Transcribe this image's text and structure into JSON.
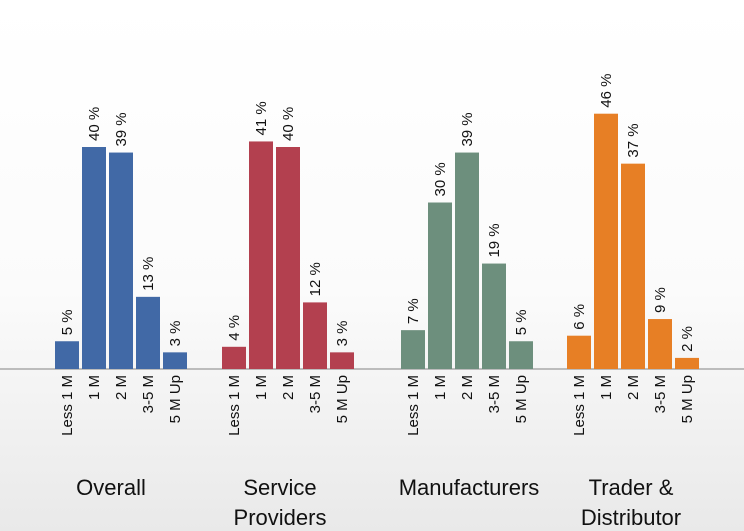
{
  "chart_data": {
    "type": "bar",
    "categories": [
      "Less 1 M",
      "1 M",
      "2 M",
      "3-5 M",
      "5 M Up"
    ],
    "value_suffix": " %",
    "ylim": [
      0,
      50
    ],
    "grid": false,
    "legend": "none",
    "groups": [
      {
        "label_lines": [
          "Overall"
        ],
        "color": "#4169a6",
        "values": [
          5,
          40,
          39,
          13,
          3
        ]
      },
      {
        "label_lines": [
          "Service",
          "Providers"
        ],
        "color": "#b3404f",
        "values": [
          4,
          41,
          40,
          12,
          3
        ]
      },
      {
        "label_lines": [
          "Manufacturers"
        ],
        "color": "#6d8f7d",
        "values": [
          7,
          30,
          39,
          19,
          5
        ]
      },
      {
        "label_lines": [
          "Trader &",
          "Distributor"
        ],
        "color": "#e77f25",
        "values": [
          6,
          46,
          37,
          9,
          2
        ]
      }
    ]
  }
}
